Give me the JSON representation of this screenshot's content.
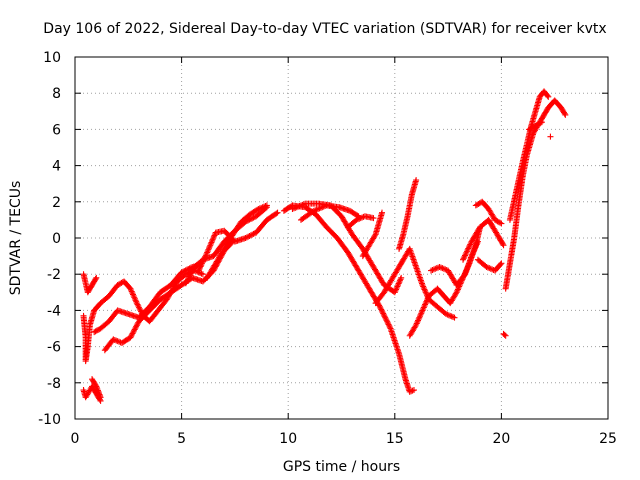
{
  "chart_data": {
    "type": "scatter",
    "title": "Day 106 of 2022, Sidereal Day-to-day VTEC variation (SDTVAR) for receiver kvtx",
    "xlabel": "GPS time / hours",
    "ylabel": "SDTVAR / TECUs",
    "xlim": [
      0,
      25
    ],
    "ylim": [
      -10,
      10
    ],
    "xticks": [
      "0",
      "5",
      "10",
      "15",
      "20",
      "25"
    ],
    "yticks": [
      "-10",
      "-8",
      "-6",
      "-4",
      "-2",
      "0",
      "2",
      "4",
      "6",
      "8",
      "10"
    ],
    "grid": true,
    "marker": "+",
    "color": "#ff0000",
    "tracks": [
      [
        [
          0.4,
          -2.0
        ],
        [
          0.5,
          -2.5
        ],
        [
          0.6,
          -3.0
        ],
        [
          0.8,
          -2.6
        ],
        [
          1.0,
          -2.2
        ]
      ],
      [
        [
          0.4,
          -4.3
        ],
        [
          0.5,
          -5.5
        ],
        [
          0.5,
          -6.8
        ],
        [
          0.6,
          -6.0
        ],
        [
          0.7,
          -4.8
        ],
        [
          0.9,
          -4.0
        ],
        [
          1.2,
          -3.6
        ],
        [
          1.6,
          -3.2
        ],
        [
          2.0,
          -2.6
        ],
        [
          2.3,
          -2.4
        ],
        [
          2.6,
          -2.8
        ],
        [
          2.9,
          -3.6
        ],
        [
          3.2,
          -4.3
        ],
        [
          3.5,
          -4.6
        ],
        [
          3.9,
          -4.0
        ],
        [
          4.3,
          -3.4
        ],
        [
          4.8,
          -2.4
        ],
        [
          5.2,
          -2.0
        ],
        [
          5.6,
          -1.8
        ],
        [
          6.0,
          -2.0
        ]
      ],
      [
        [
          0.9,
          -5.2
        ],
        [
          1.2,
          -5.0
        ],
        [
          1.6,
          -4.6
        ],
        [
          2.0,
          -4.0
        ],
        [
          2.5,
          -4.2
        ],
        [
          3.0,
          -4.4
        ],
        [
          3.5,
          -3.8
        ],
        [
          4.0,
          -3.0
        ],
        [
          4.5,
          -2.6
        ],
        [
          5.0,
          -1.9
        ],
        [
          5.5,
          -1.6
        ],
        [
          5.9,
          -1.5
        ]
      ],
      [
        [
          1.4,
          -6.2
        ],
        [
          1.8,
          -5.6
        ],
        [
          2.2,
          -5.8
        ],
        [
          2.6,
          -5.5
        ],
        [
          3.0,
          -4.6
        ],
        [
          3.5,
          -4.0
        ],
        [
          4.0,
          -3.4
        ],
        [
          4.5,
          -3.0
        ],
        [
          5.0,
          -2.6
        ],
        [
          5.5,
          -2.2
        ],
        [
          6.0,
          -2.4
        ],
        [
          6.5,
          -1.8
        ],
        [
          7.0,
          -0.7
        ],
        [
          7.4,
          -0.2
        ]
      ],
      [
        [
          0.4,
          -8.4
        ],
        [
          0.5,
          -8.8
        ],
        [
          0.8,
          -8.2
        ],
        [
          1.0,
          -8.6
        ],
        [
          1.2,
          -9.0
        ]
      ],
      [
        [
          0.8,
          -7.8
        ],
        [
          1.0,
          -8.2
        ],
        [
          1.2,
          -8.8
        ]
      ],
      [
        [
          5.2,
          -2.5
        ],
        [
          5.6,
          -1.6
        ],
        [
          6.0,
          -1.2
        ],
        [
          6.5,
          -1.0
        ],
        [
          7.0,
          -0.2
        ],
        [
          7.5,
          0.4
        ],
        [
          8.0,
          0.9
        ],
        [
          8.5,
          1.2
        ],
        [
          9.0,
          1.7
        ]
      ],
      [
        [
          5.8,
          -1.8
        ],
        [
          6.2,
          -0.8
        ],
        [
          6.6,
          0.3
        ],
        [
          7.0,
          0.4
        ],
        [
          7.5,
          -0.2
        ],
        [
          8.0,
          0.0
        ],
        [
          8.5,
          0.3
        ],
        [
          9.0,
          1.0
        ],
        [
          9.5,
          1.4
        ]
      ],
      [
        [
          6.2,
          -2.2
        ],
        [
          6.8,
          -1.0
        ],
        [
          7.3,
          0.0
        ],
        [
          7.8,
          0.9
        ],
        [
          8.2,
          1.3
        ],
        [
          8.6,
          1.6
        ],
        [
          9.0,
          1.8
        ]
      ],
      [
        [
          9.8,
          1.5
        ],
        [
          10.2,
          1.8
        ],
        [
          10.8,
          1.7
        ],
        [
          11.3,
          1.3
        ],
        [
          11.8,
          0.6
        ],
        [
          12.3,
          0.0
        ],
        [
          12.8,
          -0.8
        ],
        [
          13.3,
          -1.8
        ],
        [
          13.8,
          -2.8
        ],
        [
          14.3,
          -3.8
        ],
        [
          14.8,
          -5.0
        ],
        [
          15.2,
          -6.4
        ],
        [
          15.5,
          -7.8
        ],
        [
          15.7,
          -8.5
        ],
        [
          15.9,
          -8.4
        ]
      ],
      [
        [
          10.2,
          1.6
        ],
        [
          10.8,
          1.9
        ],
        [
          11.4,
          1.9
        ],
        [
          12.0,
          1.8
        ],
        [
          12.5,
          1.2
        ],
        [
          13.0,
          0.2
        ],
        [
          13.5,
          -0.6
        ],
        [
          14.0,
          -1.6
        ],
        [
          14.5,
          -2.6
        ],
        [
          15.0,
          -3.0
        ],
        [
          15.3,
          -2.2
        ]
      ],
      [
        [
          10.6,
          1.0
        ],
        [
          11.2,
          1.5
        ],
        [
          11.8,
          1.8
        ],
        [
          12.4,
          1.7
        ],
        [
          12.9,
          1.5
        ],
        [
          13.3,
          1.2
        ]
      ],
      [
        [
          12.8,
          0.6
        ],
        [
          13.2,
          1.0
        ],
        [
          13.6,
          1.2
        ],
        [
          14.0,
          1.1
        ]
      ],
      [
        [
          13.5,
          -1.0
        ],
        [
          13.8,
          -0.4
        ],
        [
          14.1,
          0.2
        ],
        [
          14.4,
          1.4
        ]
      ],
      [
        [
          14.1,
          -3.6
        ],
        [
          14.5,
          -3.0
        ],
        [
          14.9,
          -2.2
        ],
        [
          15.2,
          -1.6
        ],
        [
          15.4,
          -1.2
        ],
        [
          15.7,
          -0.6
        ],
        [
          16.0,
          -1.6
        ],
        [
          16.3,
          -2.6
        ],
        [
          16.6,
          -3.4
        ],
        [
          17.0,
          -3.8
        ],
        [
          17.4,
          -4.2
        ],
        [
          17.8,
          -4.4
        ]
      ],
      [
        [
          15.2,
          -0.6
        ],
        [
          15.4,
          0.2
        ],
        [
          15.6,
          1.2
        ],
        [
          15.8,
          2.4
        ],
        [
          16.0,
          3.2
        ]
      ],
      [
        [
          15.7,
          -5.4
        ],
        [
          16.0,
          -4.8
        ],
        [
          16.3,
          -4.0
        ],
        [
          16.6,
          -3.2
        ],
        [
          17.0,
          -2.8
        ],
        [
          17.3,
          -3.2
        ],
        [
          17.6,
          -3.6
        ],
        [
          17.9,
          -3.0
        ],
        [
          18.2,
          -2.2
        ],
        [
          18.5,
          -1.4
        ],
        [
          18.8,
          -0.4
        ],
        [
          19.0,
          0.6
        ]
      ],
      [
        [
          16.7,
          -1.8
        ],
        [
          17.1,
          -1.6
        ],
        [
          17.5,
          -1.8
        ],
        [
          17.9,
          -2.6
        ],
        [
          18.3,
          -2.0
        ],
        [
          18.6,
          -1.0
        ],
        [
          18.9,
          -0.2
        ]
      ],
      [
        [
          18.2,
          -1.2
        ],
        [
          18.6,
          -0.2
        ],
        [
          19.0,
          0.6
        ],
        [
          19.4,
          1.0
        ],
        [
          19.6,
          0.6
        ],
        [
          19.9,
          0.0
        ],
        [
          20.1,
          -0.4
        ]
      ],
      [
        [
          18.8,
          1.8
        ],
        [
          19.1,
          2.0
        ],
        [
          19.4,
          1.6
        ],
        [
          19.7,
          1.0
        ],
        [
          20.0,
          0.8
        ]
      ],
      [
        [
          18.9,
          -1.2
        ],
        [
          19.3,
          -1.6
        ],
        [
          19.7,
          -1.8
        ],
        [
          20.0,
          -1.4
        ]
      ],
      [
        [
          20.1,
          -5.3
        ],
        [
          20.2,
          -5.4
        ]
      ],
      [
        [
          20.2,
          -2.8
        ],
        [
          20.4,
          -1.4
        ],
        [
          20.6,
          0.0
        ],
        [
          20.8,
          1.8
        ],
        [
          21.0,
          3.4
        ],
        [
          21.2,
          4.6
        ],
        [
          21.5,
          5.8
        ],
        [
          21.8,
          6.4
        ],
        [
          22.0,
          6.8
        ],
        [
          22.2,
          7.2
        ],
        [
          22.5,
          7.6
        ],
        [
          22.8,
          7.2
        ],
        [
          23.0,
          6.8
        ]
      ],
      [
        [
          20.4,
          1.0
        ],
        [
          20.7,
          2.6
        ],
        [
          21.0,
          4.2
        ],
        [
          21.2,
          5.2
        ],
        [
          21.4,
          6.2
        ],
        [
          21.6,
          7.0
        ],
        [
          21.8,
          7.8
        ],
        [
          22.0,
          8.1
        ],
        [
          22.2,
          7.8
        ]
      ],
      [
        [
          21.3,
          6.0
        ],
        [
          21.6,
          6.2
        ],
        [
          21.9,
          6.4
        ]
      ],
      [
        [
          22.3,
          5.6
        ]
      ]
    ]
  }
}
